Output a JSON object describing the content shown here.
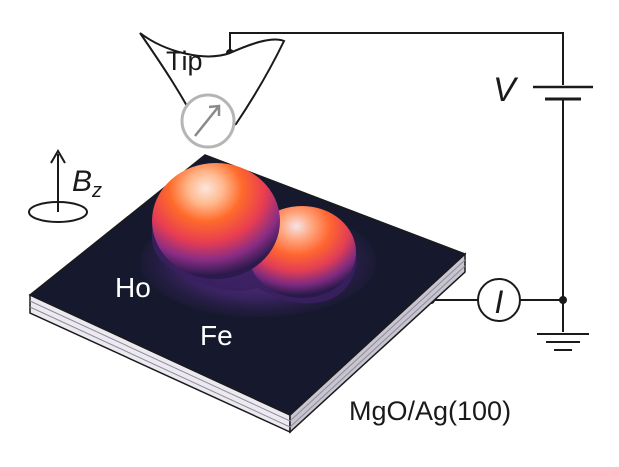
{
  "labels": {
    "tip": "Tip",
    "voltage": "V",
    "field_main": "B",
    "field_sub": "z",
    "current": "I",
    "atom_ho": "Ho",
    "atom_fe": "Fe",
    "substrate": "MgO/Ag(100)"
  },
  "colors": {
    "line": "#1a1a1a",
    "surface": "#16192d",
    "layer_light": "#eceaf0",
    "layer_mid": "#c8c5d1",
    "peak_hot": "#ff6a2a",
    "peak_glow": "#fbe6dc",
    "base_purple": "#3a2060",
    "spin_indicator": "#b5b5b5"
  },
  "icons": {
    "battery": "battery-icon",
    "ground": "ground-icon",
    "spin": "spin-arrow-icon",
    "ammeter": "ammeter-icon",
    "field_axis": "magnetic-field-axis-icon"
  }
}
